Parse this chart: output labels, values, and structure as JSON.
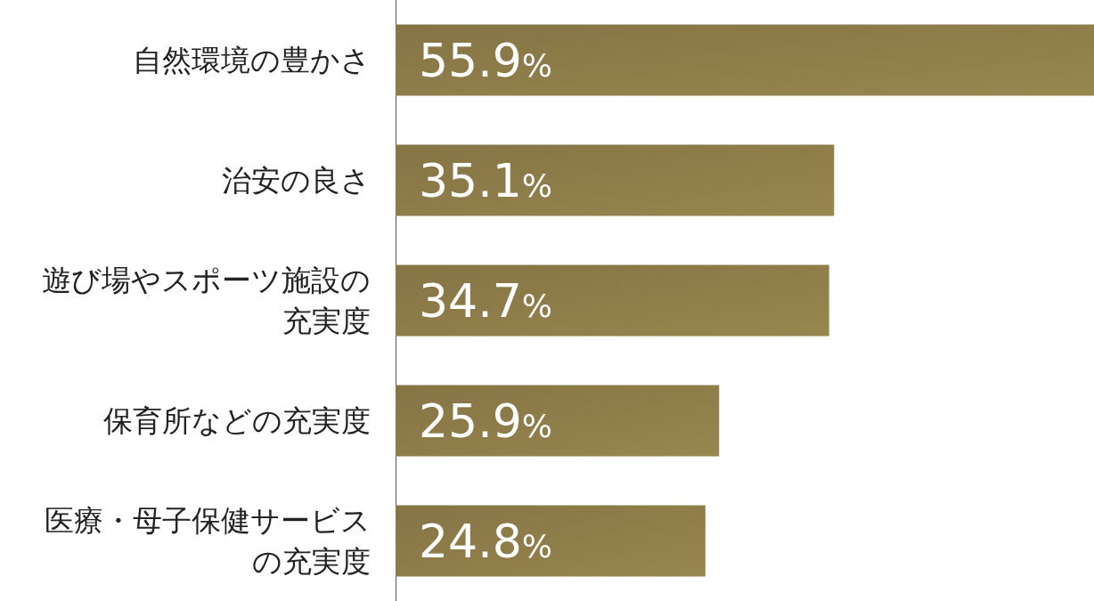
{
  "chart_data": {
    "type": "bar",
    "orientation": "horizontal",
    "categories": [
      "自然環境の豊かさ",
      "治安の良さ",
      "遊び場やスポーツ施設の充実度",
      "保育所などの充実度",
      "医療・母子保健サービスの充実度"
    ],
    "values": [
      55.9,
      35.1,
      34.7,
      25.9,
      24.8
    ],
    "value_labels": [
      "55.9%",
      "35.1%",
      "34.7%",
      "25.9%",
      "24.8%"
    ],
    "color": "#857545",
    "xlim": [
      0,
      55.9
    ],
    "tick_labels": "y",
    "grid": false
  }
}
